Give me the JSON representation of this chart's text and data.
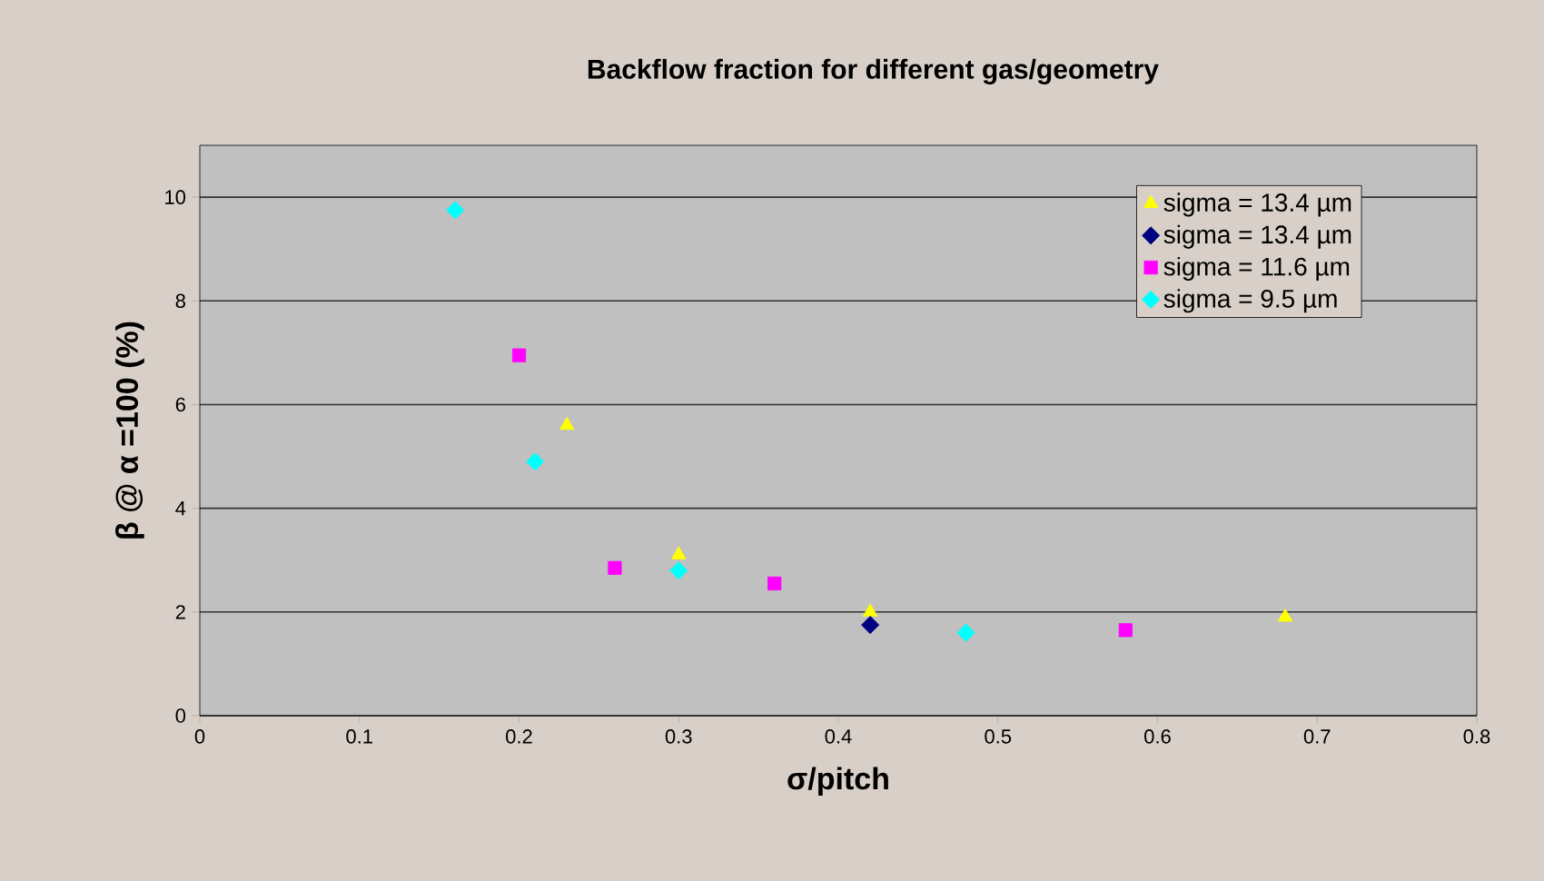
{
  "chart_data": {
    "type": "scatter",
    "title": "Backflow fraction for different gas/geometry",
    "xlabel": "σ/pitch",
    "ylabel": "β @ α =100 (%)",
    "xlim": [
      0,
      0.8
    ],
    "xticks": [
      0,
      0.1,
      0.2,
      0.3,
      0.4,
      0.5,
      0.6,
      0.7,
      0.8
    ],
    "ylim": [
      0,
      11
    ],
    "yticks": [
      0,
      2,
      4,
      6,
      8,
      10
    ],
    "grid": "y",
    "legend": "top right",
    "series": [
      {
        "name": "sigma = 13.4 µm",
        "color": "#ffff00",
        "marker": "triangle",
        "x": [
          0.23,
          0.3,
          0.42,
          0.68
        ],
        "values": [
          5.6,
          3.1,
          2.0,
          1.9
        ]
      },
      {
        "name": "sigma = 13.4 µm",
        "color": "#000080",
        "marker": "diamond",
        "x": [
          0.42
        ],
        "values": [
          1.75
        ]
      },
      {
        "name": "sigma = 11.6 µm",
        "color": "#ff00ff",
        "marker": "square",
        "x": [
          0.2,
          0.26,
          0.36,
          0.58
        ],
        "values": [
          6.95,
          2.85,
          2.55,
          1.65
        ]
      },
      {
        "name": "sigma = 9.5 µm",
        "color": "#00ffff",
        "marker": "diamond",
        "x": [
          0.16,
          0.21,
          0.3,
          0.48
        ],
        "values": [
          9.75,
          4.9,
          2.8,
          1.6
        ]
      }
    ]
  }
}
